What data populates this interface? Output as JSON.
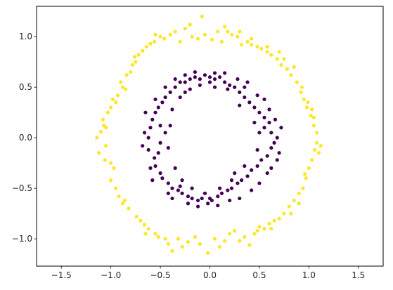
{
  "chart_data": {
    "type": "scatter",
    "title": "",
    "xlabel": "",
    "ylabel": "",
    "xlim": [
      -1.75,
      1.75
    ],
    "ylim": [
      -1.27,
      1.3
    ],
    "xticks": [
      -1.5,
      -1.0,
      -0.5,
      0.0,
      0.5,
      1.0,
      1.5
    ],
    "xtick_labels": [
      "−1.5",
      "−1.0",
      "−0.5",
      "0.0",
      "0.5",
      "1.0",
      "1.5"
    ],
    "yticks": [
      -1.0,
      -0.5,
      0.0,
      0.5,
      1.0
    ],
    "ytick_labels": [
      "−1.0",
      "−0.5",
      "0.0",
      "0.5",
      "1.0"
    ],
    "grid": false,
    "legend": "none",
    "series": [
      {
        "color": "#fde725",
        "points": [
          [
            -1.14,
            0.0
          ],
          [
            -1.1,
            0.06
          ],
          [
            -1.12,
            -0.15
          ],
          [
            -1.07,
            0.12
          ],
          [
            -1.05,
            -0.08
          ],
          [
            -1.08,
            0.18
          ],
          [
            -1.03,
            0.25
          ],
          [
            -1.06,
            -0.22
          ],
          [
            -1.0,
            0.3
          ],
          [
            -0.98,
            0.38
          ],
          [
            -0.97,
            -0.3
          ],
          [
            -1.0,
            -0.42
          ],
          [
            -0.93,
            0.42
          ],
          [
            -0.95,
            -0.5
          ],
          [
            -0.9,
            0.55
          ],
          [
            -0.88,
            0.5
          ],
          [
            -0.85,
            0.48
          ],
          [
            -0.92,
            -0.58
          ],
          [
            -0.86,
            -0.62
          ],
          [
            -0.84,
            0.62
          ],
          [
            -0.8,
            0.65
          ],
          [
            -0.82,
            -0.7
          ],
          [
            -0.78,
            0.72
          ],
          [
            -0.76,
            0.8
          ],
          [
            -0.72,
            0.82
          ],
          [
            -0.74,
            -0.78
          ],
          [
            -0.7,
            -0.82
          ],
          [
            -0.68,
            0.86
          ],
          [
            -0.64,
            0.9
          ],
          [
            -0.66,
            -0.86
          ],
          [
            -0.6,
            0.93
          ],
          [
            -0.62,
            -0.9
          ],
          [
            -0.56,
            0.95
          ],
          [
            -0.55,
            -0.95
          ],
          [
            -0.5,
            1.0
          ],
          [
            -0.52,
            -0.98
          ],
          [
            -0.46,
            0.98
          ],
          [
            -0.45,
            -1.0
          ],
          [
            -0.4,
            1.02
          ],
          [
            -0.42,
            -1.05
          ],
          [
            -0.35,
            1.05
          ],
          [
            -0.38,
            -1.12
          ],
          [
            -0.3,
            0.95
          ],
          [
            -0.32,
            -1.0
          ],
          [
            -0.25,
            1.08
          ],
          [
            -0.22,
            -1.03
          ],
          [
            -0.2,
            1.12
          ],
          [
            -0.18,
            1.0
          ],
          [
            -0.15,
            -0.98
          ],
          [
            -0.12,
            0.98
          ],
          [
            -0.1,
            -1.05
          ],
          [
            -0.08,
            1.2
          ],
          [
            -0.05,
            1.02
          ],
          [
            -0.02,
            -1.14
          ],
          [
            0.02,
            0.97
          ],
          [
            0.05,
            -1.0
          ],
          [
            0.08,
            1.05
          ],
          [
            0.1,
            -1.08
          ],
          [
            0.12,
            0.95
          ],
          [
            0.15,
            -1.02
          ],
          [
            0.18,
            1.05
          ],
          [
            0.2,
            -0.95
          ],
          [
            0.22,
            1.02
          ],
          [
            0.25,
            -0.92
          ],
          [
            0.28,
            1.0
          ],
          [
            0.3,
            -1.02
          ],
          [
            0.32,
            0.92
          ],
          [
            0.35,
            -0.98
          ],
          [
            0.38,
            0.95
          ],
          [
            0.4,
            -1.06
          ],
          [
            0.42,
            0.92
          ],
          [
            0.45,
            -0.95
          ],
          [
            0.48,
            0.9
          ],
          [
            0.5,
            -0.88
          ],
          [
            0.52,
            0.88
          ],
          [
            0.55,
            -0.9
          ],
          [
            0.58,
            0.85
          ],
          [
            0.6,
            -0.85
          ],
          [
            0.62,
            0.82
          ],
          [
            0.65,
            -0.82
          ],
          [
            0.68,
            0.78
          ],
          [
            0.7,
            -0.8
          ],
          [
            0.72,
            0.72
          ],
          [
            0.75,
            -0.75
          ],
          [
            0.78,
            0.68
          ],
          [
            0.8,
            -0.68
          ],
          [
            0.82,
            0.62
          ],
          [
            0.85,
            -0.62
          ],
          [
            0.88,
            0.55
          ],
          [
            0.9,
            -0.55
          ],
          [
            0.92,
            0.45
          ],
          [
            0.94,
            -0.5
          ],
          [
            0.95,
            0.38
          ],
          [
            0.97,
            -0.4
          ],
          [
            0.98,
            0.3
          ],
          [
            1.0,
            -0.3
          ],
          [
            1.02,
            0.22
          ],
          [
            1.03,
            -0.22
          ],
          [
            1.05,
            0.12
          ],
          [
            1.06,
            -0.12
          ],
          [
            1.08,
            0.05
          ],
          [
            1.08,
            -0.05
          ],
          [
            1.1,
            -0.15
          ],
          [
            1.12,
            -0.08
          ],
          [
            1.05,
            0.2
          ],
          [
            1.03,
            0.28
          ],
          [
            0.99,
            0.35
          ],
          [
            0.96,
            -0.36
          ],
          [
            0.93,
            0.5
          ],
          [
            0.9,
            -0.65
          ],
          [
            0.85,
            0.7
          ],
          [
            0.82,
            -0.75
          ],
          [
            0.75,
            0.78
          ],
          [
            0.7,
            0.85
          ],
          [
            0.62,
            -0.9
          ],
          [
            0.58,
            0.9
          ],
          [
            0.48,
            -0.92
          ],
          [
            0.42,
            0.98
          ],
          [
            0.3,
            1.05
          ],
          [
            0.15,
            1.1
          ],
          [
            -0.28,
            -1.08
          ],
          [
            -0.55,
            1.02
          ],
          [
            -0.65,
            -0.95
          ],
          [
            -0.75,
            0.75
          ],
          [
            -0.88,
            -0.65
          ],
          [
            -0.95,
            0.35
          ],
          [
            -1.0,
            -0.25
          ],
          [
            -1.05,
            0.1
          ]
        ]
      },
      {
        "color": "#440154",
        "points": [
          [
            -0.62,
            0.0
          ],
          [
            -0.6,
            0.1
          ],
          [
            -0.62,
            -0.12
          ],
          [
            -0.58,
            0.18
          ],
          [
            -0.56,
            -0.2
          ],
          [
            -0.55,
            0.25
          ],
          [
            -0.55,
            -0.28
          ],
          [
            -0.52,
            0.3
          ],
          [
            -0.5,
            -0.35
          ],
          [
            -0.48,
            0.35
          ],
          [
            -0.48,
            -0.4
          ],
          [
            -0.45,
            0.4
          ],
          [
            -0.42,
            -0.45
          ],
          [
            -0.4,
            0.45
          ],
          [
            -0.38,
            -0.5
          ],
          [
            -0.35,
            0.5
          ],
          [
            -0.32,
            -0.52
          ],
          [
            -0.3,
            0.55
          ],
          [
            -0.28,
            -0.55
          ],
          [
            -0.25,
            0.55
          ],
          [
            -0.22,
            -0.58
          ],
          [
            -0.2,
            0.58
          ],
          [
            -0.18,
            -0.6
          ],
          [
            -0.15,
            0.6
          ],
          [
            -0.12,
            -0.62
          ],
          [
            -0.1,
            0.58
          ],
          [
            -0.08,
            -0.6
          ],
          [
            -0.05,
            0.62
          ],
          [
            -0.02,
            -0.65
          ],
          [
            0.0,
            0.6
          ],
          [
            0.02,
            -0.62
          ],
          [
            0.05,
            0.58
          ],
          [
            0.08,
            -0.58
          ],
          [
            0.1,
            0.6
          ],
          [
            0.12,
            -0.55
          ],
          [
            0.15,
            0.55
          ],
          [
            0.18,
            -0.52
          ],
          [
            0.2,
            0.52
          ],
          [
            0.22,
            -0.5
          ],
          [
            0.25,
            0.5
          ],
          [
            0.28,
            -0.45
          ],
          [
            0.3,
            0.45
          ],
          [
            0.32,
            -0.42
          ],
          [
            0.35,
            0.4
          ],
          [
            0.38,
            -0.38
          ],
          [
            0.4,
            0.35
          ],
          [
            0.42,
            -0.32
          ],
          [
            0.45,
            0.3
          ],
          [
            0.48,
            -0.28
          ],
          [
            0.5,
            0.25
          ],
          [
            0.52,
            -0.22
          ],
          [
            0.55,
            0.2
          ],
          [
            0.58,
            -0.18
          ],
          [
            0.6,
            0.15
          ],
          [
            0.62,
            -0.1
          ],
          [
            0.62,
            0.05
          ],
          [
            0.65,
            -0.05
          ],
          [
            0.68,
            0.0
          ],
          [
            -0.4,
            0.12
          ],
          [
            -0.42,
            -0.1
          ],
          [
            -0.45,
            0.05
          ],
          [
            -0.38,
            0.28
          ],
          [
            -0.35,
            -0.3
          ],
          [
            -0.3,
            0.4
          ],
          [
            -0.28,
            -0.42
          ],
          [
            -0.2,
            0.48
          ],
          [
            -0.18,
            -0.5
          ],
          [
            -0.1,
            0.52
          ],
          [
            -0.05,
            -0.55
          ],
          [
            0.05,
            0.5
          ],
          [
            0.1,
            -0.5
          ],
          [
            0.18,
            0.48
          ],
          [
            0.22,
            -0.42
          ],
          [
            0.3,
            0.32
          ],
          [
            0.35,
            -0.28
          ],
          [
            0.45,
            0.15
          ],
          [
            0.48,
            -0.12
          ],
          [
            0.5,
            0.05
          ],
          [
            -0.5,
            0.12
          ],
          [
            -0.52,
            -0.15
          ],
          [
            -0.65,
            0.25
          ],
          [
            -0.6,
            -0.3
          ],
          [
            -0.45,
            0.5
          ],
          [
            -0.42,
            -0.55
          ],
          [
            -0.25,
            0.62
          ],
          [
            -0.22,
            -0.65
          ],
          [
            0.05,
            0.64
          ],
          [
            0.08,
            -0.67
          ],
          [
            0.28,
            0.58
          ],
          [
            0.3,
            -0.6
          ],
          [
            0.48,
            0.42
          ],
          [
            0.5,
            -0.45
          ],
          [
            0.6,
            0.28
          ],
          [
            0.62,
            -0.3
          ],
          [
            0.72,
            0.1
          ],
          [
            0.7,
            -0.15
          ],
          [
            -0.55,
            0.38
          ],
          [
            -0.35,
            0.58
          ],
          [
            -0.15,
            0.65
          ],
          [
            0.15,
            0.64
          ],
          [
            0.38,
            0.55
          ],
          [
            0.55,
            0.38
          ],
          [
            0.66,
            0.18
          ],
          [
            -0.58,
            -0.42
          ],
          [
            -0.38,
            -0.6
          ],
          [
            -0.12,
            -0.68
          ],
          [
            0.2,
            -0.62
          ],
          [
            0.42,
            -0.52
          ],
          [
            0.58,
            -0.35
          ],
          [
            0.68,
            -0.22
          ],
          [
            -0.66,
            0.05
          ],
          [
            -0.68,
            -0.08
          ],
          [
            0.35,
            0.5
          ],
          [
            -0.3,
            -0.48
          ],
          [
            0.25,
            -0.35
          ],
          [
            -0.25,
            0.45
          ],
          [
            0.0,
            -0.6
          ],
          [
            0.0,
            0.55
          ],
          [
            -0.5,
            -0.05
          ],
          [
            0.55,
            0.1
          ]
        ]
      }
    ]
  }
}
